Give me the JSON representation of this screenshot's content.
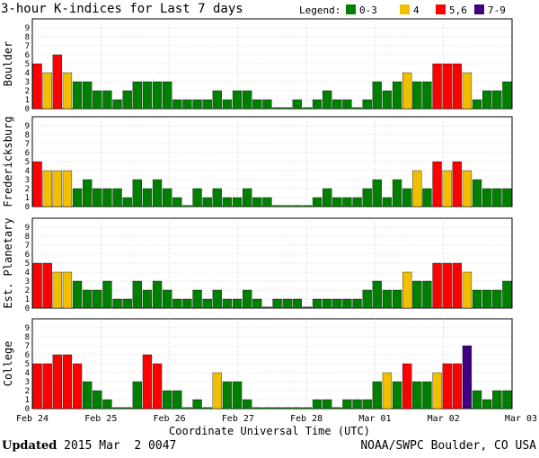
{
  "chart_data": {
    "type": "bar",
    "title": "3-hour K-indices for Last 7 days",
    "legend": {
      "title": "Legend:",
      "placement": "top-right",
      "items": [
        {
          "label": "0-3",
          "color": "#008000"
        },
        {
          "label": "4",
          "color": "#f0c000"
        },
        {
          "label": "5,6",
          "color": "#ff0000"
        },
        {
          "label": "7-9",
          "color": "#400080"
        }
      ]
    },
    "xlabel": "Coordinate Universal Time (UTC)",
    "x_ticks": [
      "Feb 24",
      "Feb 25",
      "Feb 26",
      "Feb 27",
      "Feb 28",
      "Mar 01",
      "Mar 02",
      "Mar 03"
    ],
    "ylim": [
      0,
      9
    ],
    "y_ticks": [
      "0",
      "1",
      "2",
      "3",
      "4",
      "5",
      "6",
      "7",
      "8",
      "9"
    ],
    "grid": true,
    "bin": "3 hours",
    "series": [
      {
        "name": "Boulder",
        "values": [
          5,
          4,
          6,
          4,
          3,
          3,
          2,
          2,
          1,
          2,
          3,
          3,
          3,
          3,
          1,
          1,
          1,
          1,
          2,
          1,
          2,
          2,
          1,
          1,
          0,
          0,
          1,
          0,
          1,
          2,
          1,
          1,
          0,
          1,
          3,
          2,
          3,
          4,
          3,
          3,
          5,
          5,
          5,
          4,
          1,
          2,
          2,
          3
        ]
      },
      {
        "name": "Fredericksburg",
        "values": [
          5,
          4,
          4,
          4,
          2,
          3,
          2,
          2,
          2,
          1,
          3,
          2,
          3,
          2,
          1,
          0,
          2,
          1,
          2,
          1,
          1,
          2,
          1,
          1,
          0,
          0,
          0,
          0,
          1,
          2,
          1,
          1,
          1,
          2,
          3,
          1,
          3,
          2,
          4,
          2,
          5,
          4,
          5,
          4,
          3,
          2,
          2,
          2
        ]
      },
      {
        "name": "Est. Planetary",
        "values": [
          5,
          5,
          4,
          4,
          3,
          2,
          2,
          3,
          1,
          1,
          3,
          2,
          3,
          2,
          1,
          1,
          2,
          1,
          2,
          1,
          1,
          2,
          1,
          0,
          1,
          1,
          1,
          0,
          1,
          1,
          1,
          1,
          1,
          2,
          3,
          2,
          2,
          4,
          3,
          3,
          5,
          5,
          5,
          4,
          2,
          2,
          2,
          3
        ]
      },
      {
        "name": "College",
        "values": [
          5,
          5,
          6,
          6,
          5,
          3,
          2,
          1,
          0,
          0,
          3,
          6,
          5,
          2,
          2,
          0,
          1,
          0,
          4,
          3,
          3,
          1,
          0,
          0,
          0,
          0,
          0,
          0,
          1,
          1,
          0,
          1,
          1,
          1,
          3,
          4,
          3,
          5,
          3,
          3,
          4,
          5,
          5,
          7,
          2,
          1,
          2,
          2
        ]
      }
    ],
    "color_scale": {
      "0-3": "#008000",
      "4": "#f0c000",
      "5,6": "#ff0000",
      "7-9": "#400080"
    }
  },
  "footer": {
    "updated_label": "Updated",
    "updated_value": "2015 Mar  2 0047",
    "source": "NOAA/SWPC Boulder, CO USA"
  }
}
